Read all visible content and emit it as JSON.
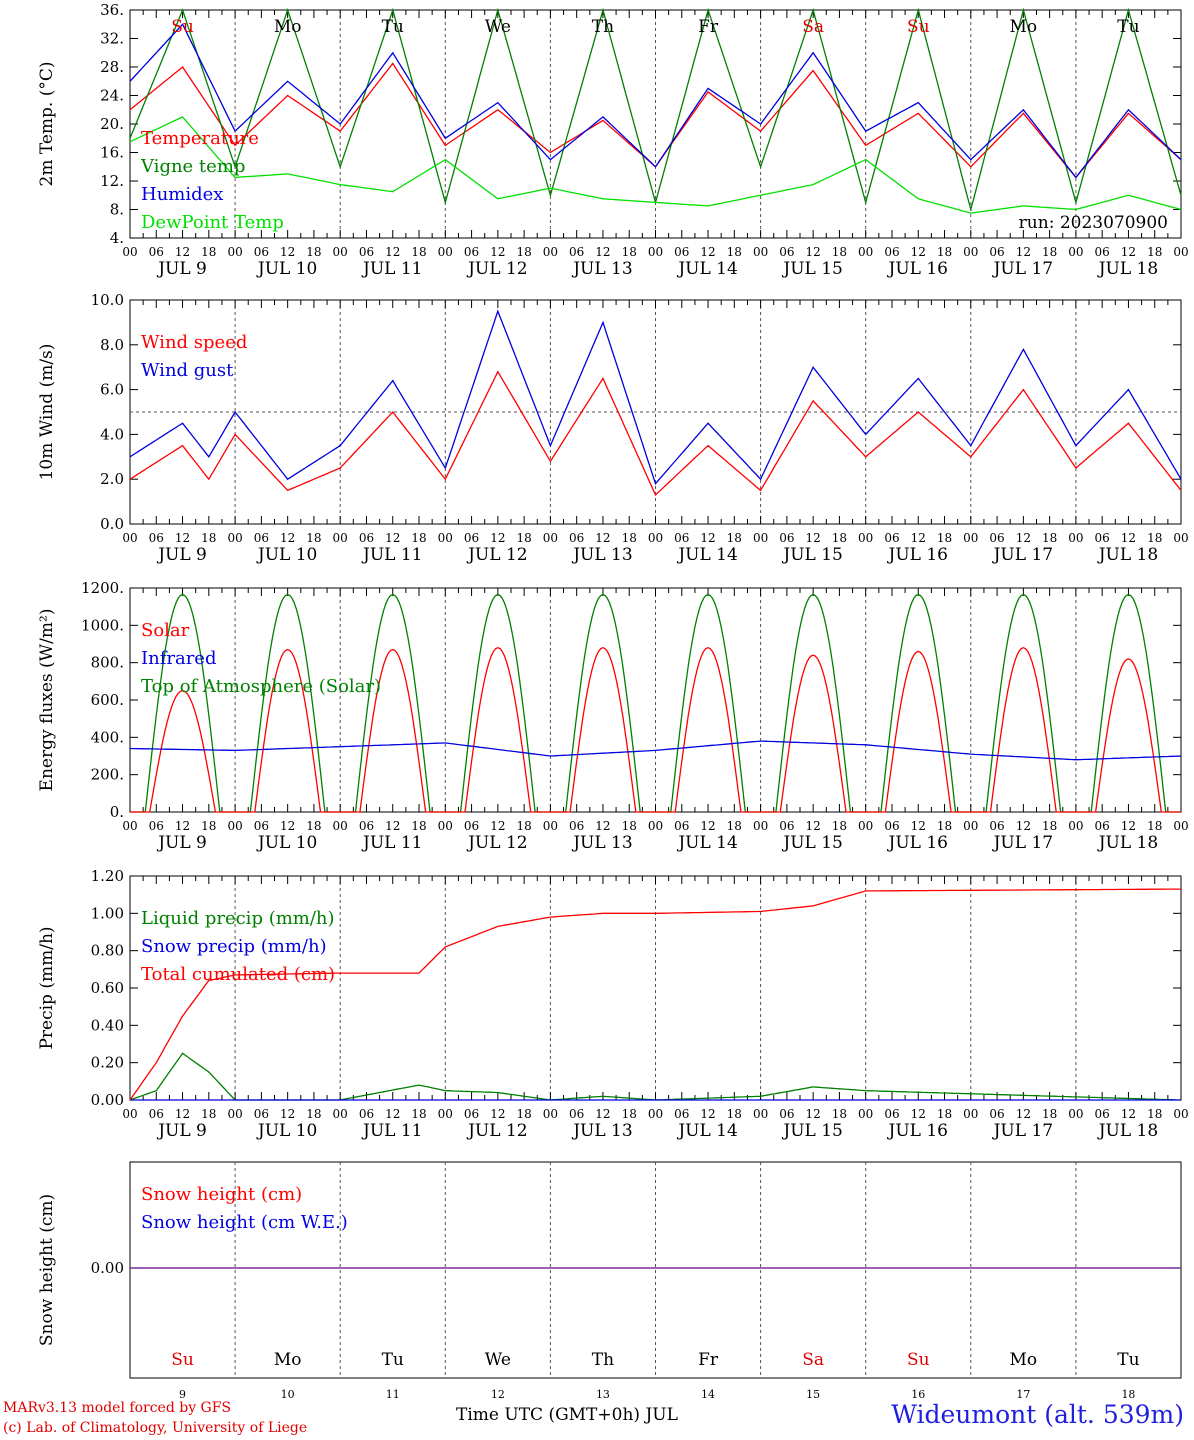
{
  "chart_data": [
    {
      "type": "line",
      "panel": "temperature",
      "ylabel": "2m Temp. (°C)",
      "yticks": [
        "36.",
        "32.",
        "28.",
        "24.",
        "20.",
        "16.",
        "12.",
        "8.",
        "4."
      ],
      "ylim": [
        4,
        36
      ],
      "run_label": "run: 2023070900",
      "x_hours": [
        0,
        12,
        24,
        36,
        48,
        60,
        72,
        84,
        96,
        108,
        120,
        132,
        144,
        156,
        168,
        180,
        192,
        204,
        216,
        228,
        240
      ],
      "series": [
        {
          "name": "Temperature",
          "color": "#ff0000",
          "values": [
            22,
            28,
            17,
            24,
            19,
            28.5,
            17,
            22,
            16,
            20.5,
            14,
            24.5,
            19,
            27.5,
            17,
            21.5,
            14,
            21.5,
            12.5,
            21.5,
            15
          ]
        },
        {
          "name": "Vigne temp",
          "color": "#008000",
          "values": [
            18,
            36,
            14,
            36,
            14,
            36,
            9,
            36,
            10,
            36,
            9,
            36,
            14,
            36,
            9,
            36,
            8,
            36,
            9,
            36,
            10
          ]
        },
        {
          "name": "Humidex",
          "color": "#0000e0",
          "values": [
            26,
            34,
            19,
            26,
            20,
            30,
            18,
            23,
            15,
            21,
            14,
            25,
            20,
            30,
            19,
            23,
            15,
            22,
            12.5,
            22,
            15
          ]
        },
        {
          "name": "DewPoint Temp",
          "color": "#00e000",
          "values": [
            17.5,
            21,
            12.5,
            13,
            11.5,
            10.5,
            15,
            9.5,
            11,
            9.5,
            9,
            8.5,
            10,
            11.5,
            15,
            9.5,
            7.5,
            8.5,
            8,
            10,
            8
          ]
        }
      ]
    },
    {
      "type": "line",
      "panel": "wind",
      "ylabel": "10m Wind (m/s)",
      "yticks": [
        "10.0",
        "8.0",
        "6.0",
        "4.0",
        "2.0",
        "0.0"
      ],
      "ylim": [
        0,
        10
      ],
      "reference_line": 5,
      "x_hours": [
        0,
        12,
        18,
        24,
        36,
        48,
        60,
        72,
        84,
        96,
        108,
        120,
        132,
        144,
        156,
        168,
        180,
        192,
        204,
        216,
        228,
        240
      ],
      "series": [
        {
          "name": "Wind speed",
          "color": "#ff0000",
          "values": [
            2,
            3.5,
            2,
            4,
            1.5,
            2.5,
            5,
            2,
            6.8,
            2.8,
            6.5,
            1.3,
            3.5,
            1.5,
            5.5,
            3,
            5,
            3,
            6,
            2.5,
            4.5,
            1.5
          ]
        },
        {
          "name": "Wind gust",
          "color": "#0000e0",
          "values": [
            3,
            4.5,
            3,
            5,
            2,
            3.5,
            6.4,
            2.5,
            9.5,
            3.5,
            9,
            1.8,
            4.5,
            2,
            7,
            4,
            6.5,
            3.5,
            7.8,
            3.5,
            6,
            2
          ]
        }
      ]
    },
    {
      "type": "line",
      "panel": "energy",
      "ylabel": "Energy fluxes (W/m²)",
      "yticks": [
        "1200.",
        "1000.",
        "800.",
        "600.",
        "400.",
        "200.",
        "0."
      ],
      "ylim": [
        0,
        1200
      ],
      "x_hours": [
        0,
        24,
        48,
        72,
        96,
        120,
        144,
        168,
        192,
        216,
        240
      ],
      "series": [
        {
          "name": "Solar",
          "color": "#ff0000",
          "peaks": [
            650,
            870,
            870,
            880,
            880,
            880,
            840,
            860,
            880,
            820
          ]
        },
        {
          "name": "Infrared",
          "color": "#0000e0",
          "values": [
            340,
            330,
            350,
            370,
            300,
            330,
            380,
            360,
            310,
            280,
            300
          ]
        },
        {
          "name": "Top of Atmosphere (Solar)",
          "color": "#008000",
          "peaks": [
            1165,
            1165,
            1165,
            1165,
            1165,
            1165,
            1165,
            1165,
            1165,
            1165
          ]
        }
      ]
    },
    {
      "type": "line",
      "panel": "precip",
      "ylabel": "Precip (mm/h)",
      "yticks": [
        "1.20",
        "1.00",
        "0.80",
        "0.60",
        "0.40",
        "0.20",
        "0.00"
      ],
      "ylim": [
        0,
        1.2
      ],
      "x_hours": [
        0,
        6,
        12,
        18,
        24,
        48,
        66,
        72,
        84,
        96,
        108,
        120,
        144,
        156,
        168,
        240
      ],
      "series": [
        {
          "name": "Liquid precip (mm/h)",
          "color": "#008000",
          "values": [
            0,
            0.05,
            0.25,
            0.15,
            0,
            0,
            0.08,
            0.05,
            0.04,
            0,
            0.02,
            0,
            0.02,
            0.07,
            0.05,
            0
          ]
        },
        {
          "name": "Snow precip (mm/h)",
          "color": "#0000e0",
          "values": [
            0,
            0,
            0,
            0,
            0,
            0,
            0,
            0,
            0,
            0,
            0,
            0,
            0,
            0,
            0,
            0
          ]
        },
        {
          "name": "Total cumulated (cm)",
          "color": "#ff0000",
          "values": [
            0,
            0.2,
            0.45,
            0.64,
            0.67,
            0.68,
            0.68,
            0.82,
            0.93,
            0.98,
            1.0,
            1.0,
            1.01,
            1.04,
            1.12,
            1.13
          ]
        }
      ]
    },
    {
      "type": "line",
      "panel": "snow",
      "ylabel": "Snow height (cm)",
      "yticks": [
        "0.00"
      ],
      "series": [
        {
          "name": "Snow height (cm)",
          "color": "#ff0000",
          "values": [
            0,
            0
          ]
        },
        {
          "name": "Snow height (cm W.E.)",
          "color": "#0000e0",
          "values": [
            0,
            0
          ]
        }
      ]
    }
  ],
  "x_axis": {
    "hour_ticks": [
      "00",
      "06",
      "12",
      "18"
    ],
    "end_tick": "00",
    "day_labels": [
      "JUL  9",
      "JUL 10",
      "JUL 11",
      "JUL 12",
      "JUL 13",
      "JUL 14",
      "JUL 15",
      "JUL 16",
      "JUL 17",
      "JUL 18"
    ],
    "weekdays": [
      "Su",
      "Mo",
      "Tu",
      "We",
      "Th",
      "Fr",
      "Sa",
      "Su",
      "Mo",
      "Tu"
    ],
    "weekend_flags": [
      true,
      false,
      false,
      false,
      false,
      false,
      true,
      true,
      false,
      false
    ],
    "day_numbers": [
      "9",
      "10",
      "11",
      "12",
      "13",
      "14",
      "15",
      "16",
      "17",
      "18"
    ],
    "title": "Time UTC (GMT+0h) JUL"
  },
  "colors": {
    "weekend": "#e00000",
    "weekday": "#000000",
    "frame": "#000000",
    "grid_dash": "#555555"
  },
  "footer": {
    "credit_line1": "MARv3.13 model forced by GFS",
    "credit_line2": "(c) Lab. of Climatology, University of Liege",
    "station": "Wideumont (alt. 539m)"
  }
}
